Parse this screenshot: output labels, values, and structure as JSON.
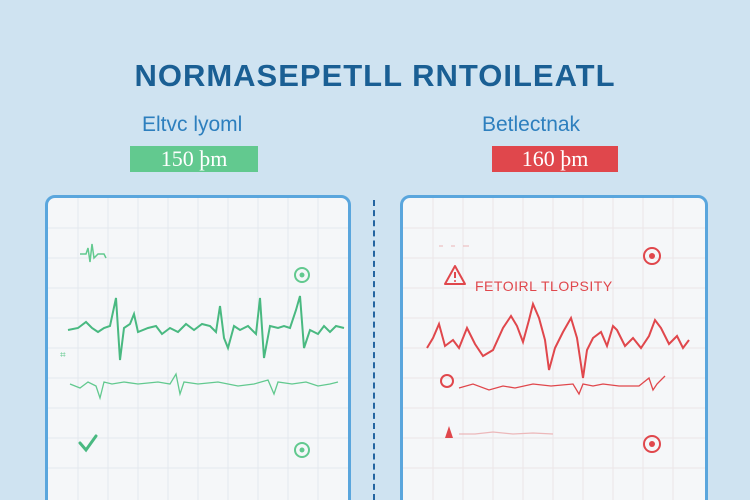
{
  "title": "NORMASEPETLL RNTOILEATL",
  "left": {
    "subtitle": "Eltvc lyoml",
    "rate": "150 þm",
    "accent": "#62c98f"
  },
  "right": {
    "subtitle": "Betlectnak",
    "rate": "160 þm",
    "warning_text": "FETOIRL TLOPSITY",
    "accent": "#e0474c"
  },
  "icons": {
    "left": [
      "check-icon",
      "status-dot-icon",
      "hash-icon"
    ],
    "right": [
      "warning-triangle-icon",
      "alert-circle-icon",
      "warning-drop-icon"
    ]
  }
}
